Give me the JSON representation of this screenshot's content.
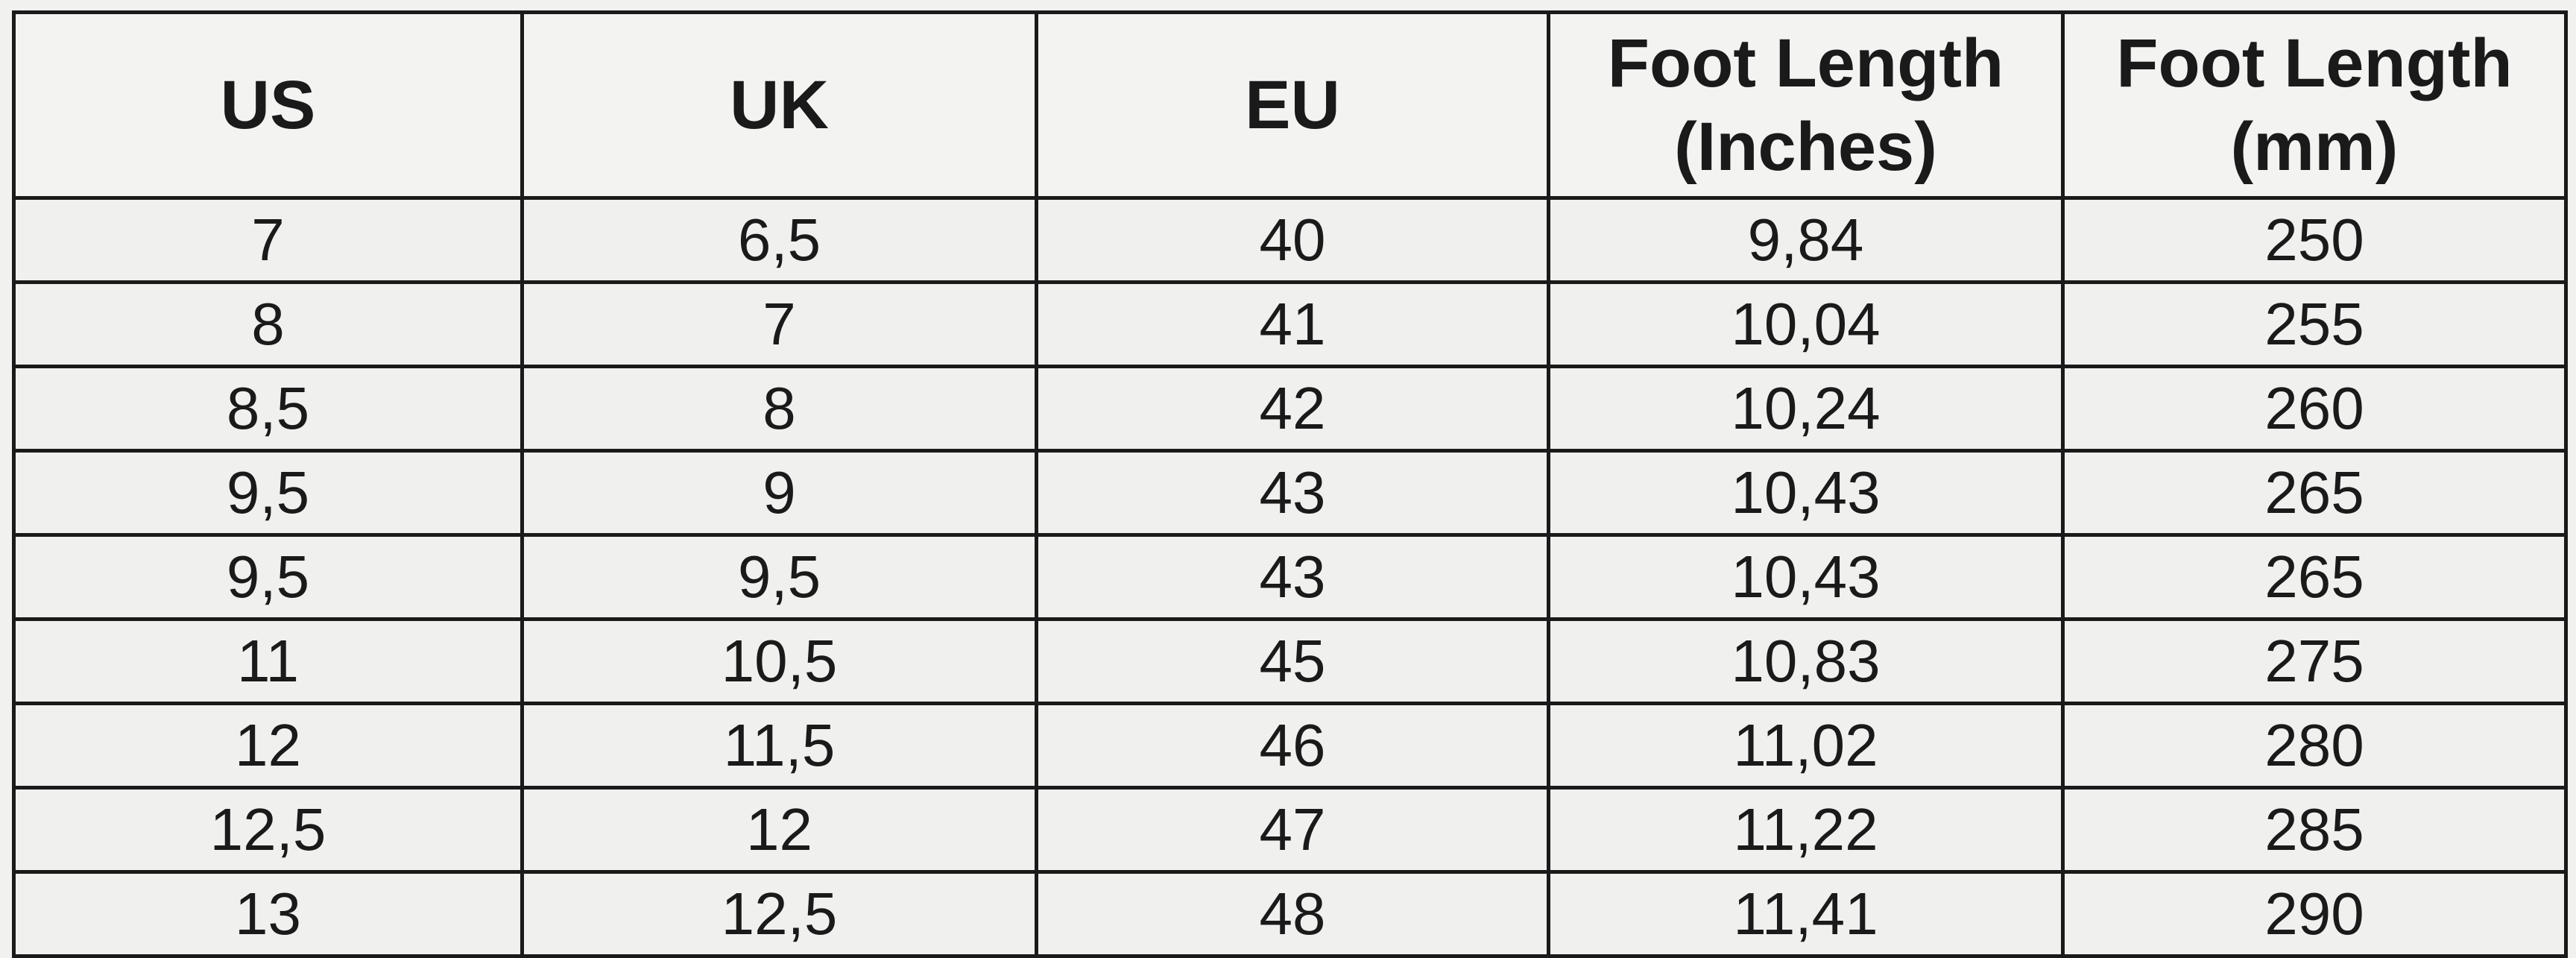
{
  "table": {
    "headers": [
      "US",
      "UK",
      "EU",
      "Foot Length (Inches)",
      "Foot Length (mm)"
    ],
    "rows": [
      [
        "7",
        "6,5",
        "40",
        "9,84",
        "250"
      ],
      [
        "8",
        "7",
        "41",
        "10,04",
        "255"
      ],
      [
        "8,5",
        "8",
        "42",
        "10,24",
        "260"
      ],
      [
        "9,5",
        "9",
        "43",
        "10,43",
        "265"
      ],
      [
        "9,5",
        "9,5",
        "43",
        "10,43",
        "265"
      ],
      [
        "11",
        "10,5",
        "45",
        "10,83",
        "275"
      ],
      [
        "12",
        "11,5",
        "46",
        "11,02",
        "280"
      ],
      [
        "12,5",
        "12",
        "47",
        "11,22",
        "285"
      ],
      [
        "13",
        "12,5",
        "48",
        "11,41",
        "290"
      ]
    ]
  }
}
